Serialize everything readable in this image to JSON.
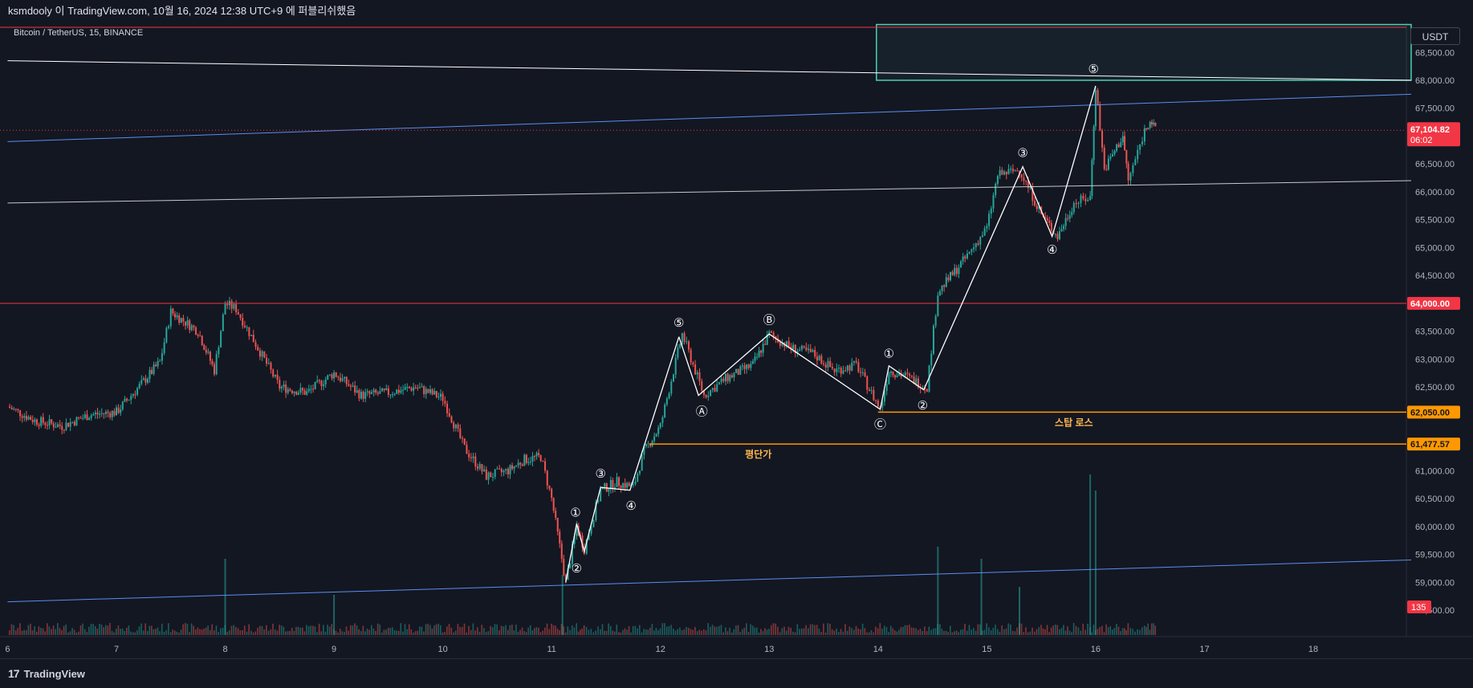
{
  "header": {
    "publish_text": "ksmdooly 이 TradingView.com, 10월 16, 2024 12:38 UTC+9 에 퍼블리쉬했음",
    "symbol_text": "Bitcoin / TetherUS, 15, BINANCE"
  },
  "currency_button": "USDT",
  "footer": {
    "logo_mark": "17",
    "logo_text": "TradingView"
  },
  "colors": {
    "background": "#131722",
    "up_candle": "#26a69a",
    "down_candle": "#ef5350",
    "wave_line": "#ffffff",
    "trend_blue": "#5b8def",
    "resistance_red": "#f23645",
    "orange_level": "#ff9800",
    "zone_teal": "#4dd0b5"
  },
  "chart_data": {
    "type": "candlestick",
    "title": "Bitcoin / TetherUS, 15, BINANCE",
    "ylim": [
      58150,
      69000
    ],
    "xlim": [
      6,
      19.4
    ],
    "y_ticks": [
      "68,500.00",
      "68,000.00",
      "67,500.00",
      "66,500.00",
      "66,000.00",
      "65,500.00",
      "65,000.00",
      "64,500.00",
      "63,500.00",
      "63,000.00",
      "62,500.00",
      "61,000.00",
      "60,500.00",
      "60,000.00",
      "59,500.00",
      "59,000.00",
      "58,500.00"
    ],
    "y_tick_values": [
      68500,
      68000,
      67500,
      66500,
      66000,
      65500,
      65000,
      64500,
      63500,
      63000,
      62500,
      61000,
      60500,
      60000,
      59500,
      59000,
      58500
    ],
    "x_ticks": [
      "6",
      "7",
      "8",
      "9",
      "10",
      "11",
      "12",
      "13",
      "14",
      "15",
      "16",
      "17",
      "18"
    ],
    "x_tick_values": [
      6,
      7,
      8,
      9,
      10,
      11,
      12,
      13,
      14,
      15,
      16,
      17,
      18
    ],
    "price_path": [
      [
        6.0,
        62150
      ],
      [
        6.25,
        61900
      ],
      [
        6.5,
        61800
      ],
      [
        6.75,
        62000
      ],
      [
        7.0,
        62050
      ],
      [
        7.25,
        62600
      ],
      [
        7.4,
        62950
      ],
      [
        7.5,
        63850
      ],
      [
        7.75,
        63500
      ],
      [
        7.9,
        62800
      ],
      [
        8.0,
        64000
      ],
      [
        8.1,
        63900
      ],
      [
        8.3,
        63200
      ],
      [
        8.5,
        62500
      ],
      [
        8.75,
        62400
      ],
      [
        9.0,
        62750
      ],
      [
        9.25,
        62350
      ],
      [
        9.5,
        62400
      ],
      [
        9.75,
        62500
      ],
      [
        10.0,
        62300
      ],
      [
        10.2,
        61400
      ],
      [
        10.4,
        60900
      ],
      [
        10.6,
        61000
      ],
      [
        10.75,
        61200
      ],
      [
        10.9,
        61250
      ],
      [
        11.0,
        60500
      ],
      [
        11.13,
        59000
      ],
      [
        11.23,
        60000
      ],
      [
        11.3,
        59600
      ],
      [
        11.45,
        60650
      ],
      [
        11.6,
        60800
      ],
      [
        11.75,
        60700
      ],
      [
        11.85,
        61350
      ],
      [
        12.0,
        61800
      ],
      [
        12.2,
        63450
      ],
      [
        12.4,
        62350
      ],
      [
        12.6,
        62650
      ],
      [
        12.85,
        62900
      ],
      [
        13.0,
        63450
      ],
      [
        13.2,
        63200
      ],
      [
        13.4,
        63100
      ],
      [
        13.6,
        62800
      ],
      [
        13.8,
        62900
      ],
      [
        14.02,
        62100
      ],
      [
        14.1,
        62800
      ],
      [
        14.25,
        62700
      ],
      [
        14.45,
        62500
      ],
      [
        14.55,
        64200
      ],
      [
        14.8,
        64800
      ],
      [
        15.0,
        65350
      ],
      [
        15.1,
        66300
      ],
      [
        15.3,
        66400
      ],
      [
        15.5,
        65600
      ],
      [
        15.65,
        65200
      ],
      [
        15.8,
        65800
      ],
      [
        15.95,
        65900
      ],
      [
        16.0,
        67900
      ],
      [
        16.08,
        66400
      ],
      [
        16.25,
        67000
      ],
      [
        16.3,
        66200
      ],
      [
        16.45,
        67100
      ],
      [
        16.5,
        67300
      ],
      [
        16.55,
        67100
      ]
    ],
    "volume_spikes": [
      [
        8.0,
        95
      ],
      [
        9.0,
        50
      ],
      [
        11.1,
        75
      ],
      [
        14.55,
        110
      ],
      [
        14.95,
        95
      ],
      [
        15.3,
        60
      ],
      [
        15.95,
        200
      ],
      [
        16.0,
        180
      ]
    ],
    "lines": [
      {
        "id": "upper-channel-blue",
        "color": "#5b8def",
        "p1": [
          6.0,
          66900
        ],
        "p2": [
          18.9,
          67750
        ]
      },
      {
        "id": "lower-channel-blue",
        "color": "#5b8def",
        "p1": [
          6.0,
          58650
        ],
        "p2": [
          18.9,
          59400
        ]
      },
      {
        "id": "white-trend-top",
        "color": "#ffffff",
        "p1": [
          6.0,
          68350
        ],
        "p2": [
          18.9,
          68000
        ]
      },
      {
        "id": "gray-mid-line",
        "color": "#c8c8c8",
        "p1": [
          6.0,
          65800
        ],
        "p2": [
          18.9,
          66200
        ]
      }
    ],
    "horizontal_levels": [
      {
        "id": "top-red-level",
        "price": 68950,
        "color": "#f23645",
        "label": ""
      },
      {
        "id": "resistance-64000",
        "price": 64000,
        "color": "#f23645",
        "label": "64,000.00"
      },
      {
        "id": "stop-loss-62050",
        "price": 62050,
        "color": "#ff9800",
        "label": "62,050.00",
        "caption": "스탑 로스",
        "from_x": 14.0
      },
      {
        "id": "average-61477",
        "price": 61477.57,
        "color": "#ff9800",
        "label": "61,477.57",
        "caption": "평단가",
        "from_x": 11.9
      }
    ],
    "zone": {
      "x1": 14.0,
      "x2": 18.9,
      "y_top": 69000,
      "y_bottom": 68000
    },
    "current_price": {
      "value": 67104.82,
      "label": "67,104.82",
      "countdown": "06:02"
    },
    "volume_label": "135",
    "waves": [
      {
        "points": [
          [
            11.13,
            59000
          ],
          [
            11.23,
            60050
          ],
          [
            11.3,
            59550
          ],
          [
            11.45,
            60700
          ],
          [
            11.72,
            60650
          ],
          [
            12.17,
            63400
          ]
        ],
        "labels": [
          {
            "x": 11.22,
            "y": 60250,
            "text": "①"
          },
          {
            "x": 11.23,
            "y": 59250,
            "text": "②"
          },
          {
            "x": 11.45,
            "y": 60950,
            "text": "③"
          },
          {
            "x": 11.73,
            "y": 60370,
            "text": "④"
          },
          {
            "x": 12.17,
            "y": 63650,
            "text": "⑤"
          }
        ]
      },
      {
        "points": [
          [
            12.17,
            63400
          ],
          [
            12.35,
            62350
          ],
          [
            13.0,
            63450
          ],
          [
            14.02,
            62100
          ]
        ],
        "labels": [
          {
            "x": 12.38,
            "y": 62060,
            "text": "Ⓐ"
          },
          {
            "x": 13.0,
            "y": 63700,
            "text": "Ⓑ"
          },
          {
            "x": 14.02,
            "y": 61830,
            "text": "Ⓒ"
          }
        ]
      },
      {
        "points": [
          [
            14.02,
            62100
          ],
          [
            14.1,
            62880
          ],
          [
            14.42,
            62450
          ],
          [
            15.33,
            66450
          ],
          [
            15.6,
            65200
          ],
          [
            16.0,
            67900
          ]
        ],
        "labels": [
          {
            "x": 14.1,
            "y": 63100,
            "text": "①"
          },
          {
            "x": 14.41,
            "y": 62170,
            "text": "②"
          },
          {
            "x": 15.33,
            "y": 66700,
            "text": "③"
          },
          {
            "x": 15.6,
            "y": 64960,
            "text": "④"
          },
          {
            "x": 15.98,
            "y": 68200,
            "text": "⑤"
          }
        ]
      }
    ]
  }
}
